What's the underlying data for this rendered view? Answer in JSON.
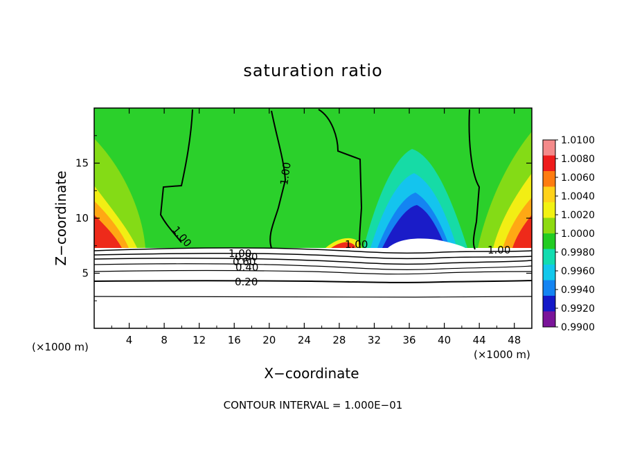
{
  "chart_data": {
    "type": "heatmap",
    "title": "saturation ratio",
    "xlabel": "X−coordinate",
    "ylabel": "Z−coordinate",
    "x_unit": "(×1000 m)",
    "y_unit": "(×1000 m)",
    "xlim": [
      0,
      50
    ],
    "ylim": [
      0,
      20
    ],
    "x_ticks": [
      4,
      8,
      12,
      16,
      20,
      24,
      28,
      32,
      36,
      40,
      44,
      48
    ],
    "y_ticks": [
      5,
      10,
      15
    ],
    "colorbar": {
      "min": 0.99,
      "max": 1.01,
      "ticks": [
        "1.0100",
        "1.0080",
        "1.0060",
        "1.0040",
        "1.0020",
        "1.0000",
        "0.9980",
        "0.9960",
        "0.9940",
        "0.9920",
        "0.9900"
      ],
      "colors": [
        "#f48a8a",
        "#ee1b1b",
        "#fe7c10",
        "#ffd21a",
        "#f2f212",
        "#8eda10",
        "#22cc22",
        "#12dcb0",
        "#12c8ec",
        "#1484f2",
        "#1419c8",
        "#7a1499"
      ]
    },
    "contour_labels": [
      "1.00",
      "1.00",
      "1.00",
      "1.00",
      "1.00",
      "0.80",
      "0.60",
      "0.40",
      "0.20"
    ],
    "contour_interval": "CONTOUR INTERVAL = 1.000E−01"
  }
}
